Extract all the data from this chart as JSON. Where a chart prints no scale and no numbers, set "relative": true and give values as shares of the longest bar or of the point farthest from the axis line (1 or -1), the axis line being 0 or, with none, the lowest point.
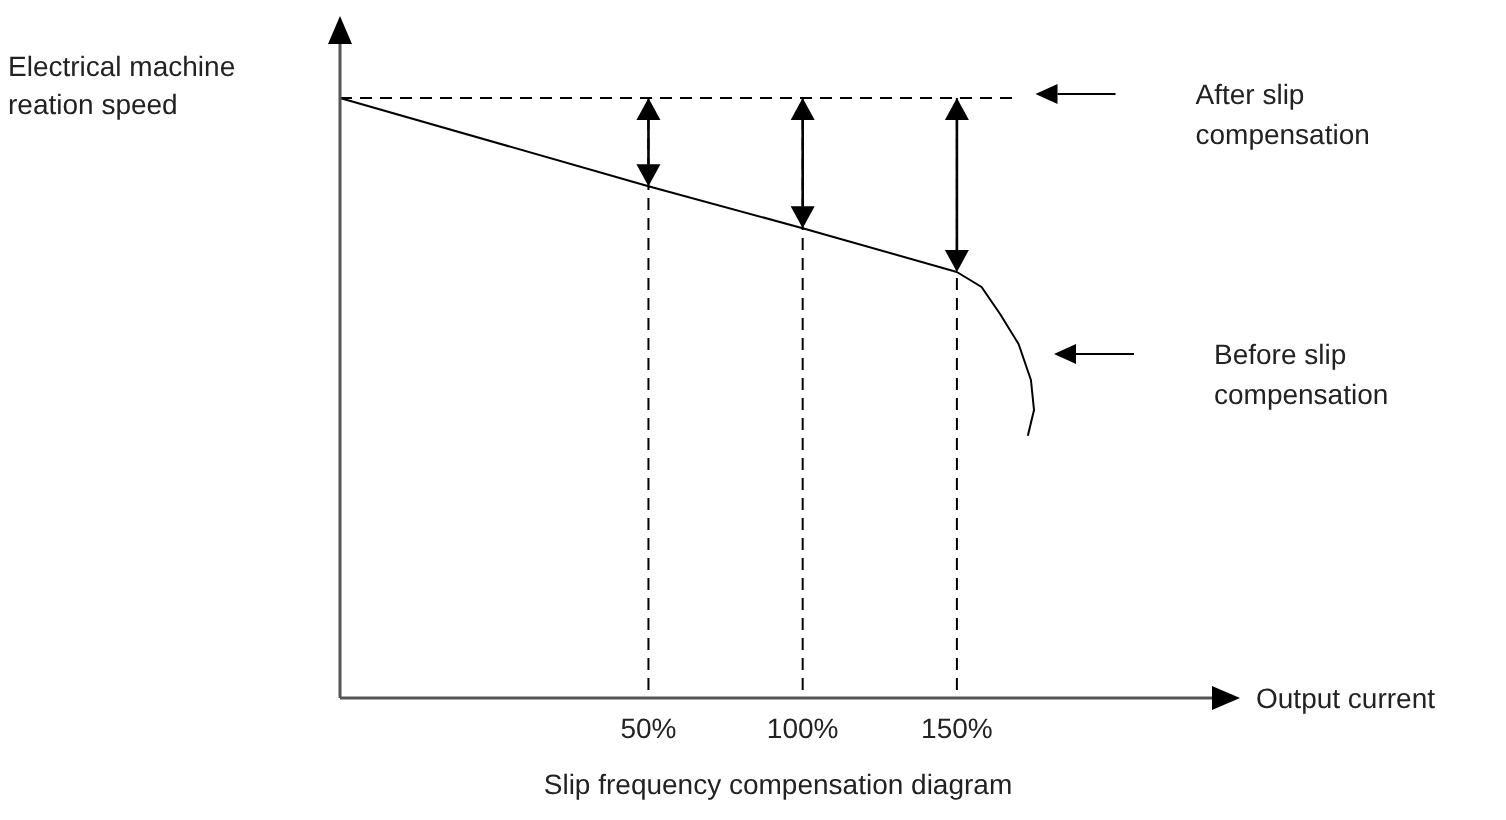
{
  "chart_data": {
    "type": "line",
    "title": "Slip frequency compensation diagram",
    "xlabel": "Output current",
    "ylabel": "Electrical machine\nreation speed",
    "relative": true,
    "xlim": [
      -50,
      234
    ],
    "xticks": [
      {
        "value": 50,
        "label": "50%"
      },
      {
        "value": 100,
        "label": "100%"
      },
      {
        "value": 150,
        "label": "150%"
      }
    ],
    "series": [
      {
        "name": "After slip compensation",
        "color": "#000000",
        "line_style": "dashed",
        "x": [
          -50,
          50,
          100,
          150,
          169
        ],
        "values": [
          1,
          1,
          1,
          1,
          1
        ]
      },
      {
        "name": "Before slip compensation",
        "color": "#000000",
        "line_style": "solid",
        "x": [
          -50,
          50,
          100,
          150,
          158,
          164,
          170,
          174,
          175,
          173
        ],
        "values": [
          1,
          0.853,
          0.783,
          0.71,
          0.685,
          0.64,
          0.59,
          0.53,
          0.48,
          0.437
        ]
      }
    ],
    "ref_lines": [
      {
        "axis": "x",
        "value": 50,
        "color": "#000000",
        "line_style": "dashed"
      },
      {
        "axis": "x",
        "value": 100,
        "color": "#000000",
        "line_style": "dashed"
      },
      {
        "axis": "x",
        "value": 150,
        "color": "#000000",
        "line_style": "dashed"
      }
    ],
    "legend": false,
    "grid": false
  }
}
